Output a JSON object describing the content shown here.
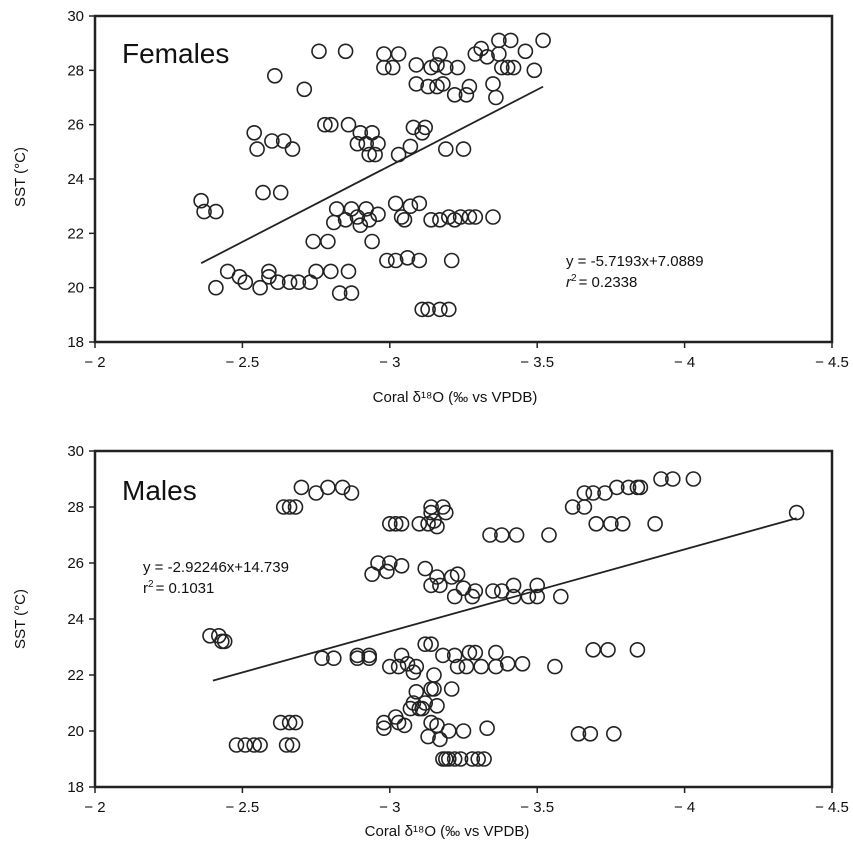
{
  "chart_data": [
    {
      "type": "scatter",
      "title": "Females",
      "xlabel": "Coral δ¹⁸O (‰ vs VPDB)",
      "ylabel": "SST (°C)",
      "xlim": [
        -2,
        -4.5
      ],
      "ylim": [
        18,
        30
      ],
      "x_axis_reversed": true,
      "xticks": [
        -2,
        -2.5,
        -3,
        -3.5,
        -4,
        -4.5
      ],
      "xtick_labels": [
        "− 2",
        "− 2.5",
        "− 3",
        "− 3.5",
        "− 4",
        "− 4.5"
      ],
      "yticks": [
        18,
        20,
        22,
        24,
        26,
        28,
        30
      ],
      "ytick_labels": [
        "18",
        "20",
        "22",
        "24",
        "26",
        "28",
        "30"
      ],
      "grid": false,
      "annotation": {
        "equation": "y = -5.7193x+7.0889",
        "r2_prefix": "r",
        "r2_sup": "2",
        "r2_value": "= 0.2338"
      },
      "trendline": {
        "x": [
          -2.36,
          -3.52
        ],
        "y": [
          20.9,
          27.4
        ]
      },
      "points": [
        [
          -2.36,
          23.2
        ],
        [
          -2.37,
          22.8
        ],
        [
          -2.41,
          22.8
        ],
        [
          -2.41,
          20.0
        ],
        [
          -2.45,
          20.6
        ],
        [
          -2.49,
          20.4
        ],
        [
          -2.51,
          20.2
        ],
        [
          -2.54,
          25.7
        ],
        [
          -2.55,
          25.1
        ],
        [
          -2.56,
          20.0
        ],
        [
          -2.57,
          23.5
        ],
        [
          -2.59,
          20.6
        ],
        [
          -2.59,
          20.4
        ],
        [
          -2.6,
          25.4
        ],
        [
          -2.61,
          27.8
        ],
        [
          -2.62,
          20.2
        ],
        [
          -2.63,
          23.5
        ],
        [
          -2.64,
          25.4
        ],
        [
          -2.66,
          20.2
        ],
        [
          -2.67,
          25.1
        ],
        [
          -2.69,
          20.2
        ],
        [
          -2.71,
          27.3
        ],
        [
          -2.73,
          20.2
        ],
        [
          -2.74,
          21.7
        ],
        [
          -2.75,
          20.6
        ],
        [
          -2.76,
          28.7
        ],
        [
          -2.78,
          26.0
        ],
        [
          -2.79,
          21.7
        ],
        [
          -2.8,
          20.6
        ],
        [
          -2.8,
          26.0
        ],
        [
          -2.81,
          22.4
        ],
        [
          -2.82,
          22.9
        ],
        [
          -2.83,
          19.8
        ],
        [
          -2.85,
          28.7
        ],
        [
          -2.85,
          22.5
        ],
        [
          -2.86,
          20.6
        ],
        [
          -2.86,
          26.0
        ],
        [
          -2.87,
          22.9
        ],
        [
          -2.87,
          19.8
        ],
        [
          -2.89,
          25.3
        ],
        [
          -2.89,
          22.6
        ],
        [
          -2.9,
          25.7
        ],
        [
          -2.9,
          22.3
        ],
        [
          -2.92,
          22.9
        ],
        [
          -2.92,
          25.3
        ],
        [
          -2.93,
          22.5
        ],
        [
          -2.93,
          24.9
        ],
        [
          -2.94,
          21.7
        ],
        [
          -2.94,
          25.7
        ],
        [
          -2.95,
          24.9
        ],
        [
          -2.96,
          22.7
        ],
        [
          -2.96,
          25.3
        ],
        [
          -2.98,
          28.6
        ],
        [
          -2.98,
          28.1
        ],
        [
          -2.99,
          21.0
        ],
        [
          -3.01,
          28.1
        ],
        [
          -3.02,
          21.0
        ],
        [
          -3.02,
          23.1
        ],
        [
          -3.03,
          28.6
        ],
        [
          -3.03,
          24.9
        ],
        [
          -3.04,
          22.6
        ],
        [
          -3.05,
          22.5
        ],
        [
          -3.06,
          21.1
        ],
        [
          -3.07,
          23.0
        ],
        [
          -3.07,
          25.2
        ],
        [
          -3.08,
          25.9
        ],
        [
          -3.09,
          28.2
        ],
        [
          -3.09,
          27.5
        ],
        [
          -3.1,
          23.1
        ],
        [
          -3.1,
          21.0
        ],
        [
          -3.11,
          25.7
        ],
        [
          -3.11,
          19.2
        ],
        [
          -3.12,
          25.9
        ],
        [
          -3.13,
          27.4
        ],
        [
          -3.13,
          19.2
        ],
        [
          -3.14,
          22.5
        ],
        [
          -3.14,
          28.1
        ],
        [
          -3.16,
          28.2
        ],
        [
          -3.16,
          27.4
        ],
        [
          -3.17,
          28.6
        ],
        [
          -3.17,
          22.5
        ],
        [
          -3.17,
          19.2
        ],
        [
          -3.18,
          27.5
        ],
        [
          -3.19,
          28.1
        ],
        [
          -3.19,
          25.1
        ],
        [
          -3.2,
          19.2
        ],
        [
          -3.2,
          22.6
        ],
        [
          -3.21,
          21.0
        ],
        [
          -3.22,
          27.1
        ],
        [
          -3.22,
          22.5
        ],
        [
          -3.23,
          28.1
        ],
        [
          -3.24,
          22.6
        ],
        [
          -3.25,
          25.1
        ],
        [
          -3.26,
          27.1
        ],
        [
          -3.27,
          22.6
        ],
        [
          -3.27,
          27.4
        ],
        [
          -3.29,
          22.6
        ],
        [
          -3.29,
          28.6
        ],
        [
          -3.31,
          28.8
        ],
        [
          -3.33,
          28.5
        ],
        [
          -3.35,
          27.5
        ],
        [
          -3.35,
          22.6
        ],
        [
          -3.36,
          27.0
        ],
        [
          -3.37,
          28.6
        ],
        [
          -3.37,
          29.1
        ],
        [
          -3.38,
          28.1
        ],
        [
          -3.4,
          28.1
        ],
        [
          -3.41,
          29.1
        ],
        [
          -3.42,
          28.1
        ],
        [
          -3.46,
          28.7
        ],
        [
          -3.49,
          28.0
        ],
        [
          -3.52,
          29.1
        ]
      ]
    },
    {
      "type": "scatter",
      "title": "Males",
      "xlabel": "Coral δ¹⁸O (‰ vs VPDB)",
      "ylabel": "SST (°C)",
      "xlim": [
        -2,
        -4.5
      ],
      "ylim": [
        18,
        30
      ],
      "x_axis_reversed": true,
      "xticks": [
        -2,
        -2.5,
        -3,
        -3.5,
        -4,
        -4.5
      ],
      "xtick_labels": [
        "− 2",
        "− 2.5",
        "− 3",
        "− 3.5",
        "− 4",
        "− 4.5"
      ],
      "yticks": [
        18,
        20,
        22,
        24,
        26,
        28,
        30
      ],
      "ytick_labels": [
        "18",
        "20",
        "22",
        "24",
        "26",
        "28",
        "30"
      ],
      "grid": false,
      "annotation": {
        "equation": "y = -2.92246x+14.739",
        "r2_prefix": "r",
        "r2_sup": "2",
        "r2_value": "= 0.1031"
      },
      "trendline": {
        "x": [
          -2.4,
          -4.38
        ],
        "y": [
          21.8,
          27.6
        ]
      },
      "points": [
        [
          -2.39,
          23.4
        ],
        [
          -2.42,
          23.4
        ],
        [
          -2.43,
          23.2
        ],
        [
          -2.44,
          23.2
        ],
        [
          -2.48,
          19.5
        ],
        [
          -2.51,
          19.5
        ],
        [
          -2.54,
          19.5
        ],
        [
          -2.56,
          19.5
        ],
        [
          -2.63,
          20.3
        ],
        [
          -2.64,
          28.0
        ],
        [
          -2.65,
          19.5
        ],
        [
          -2.66,
          20.3
        ],
        [
          -2.66,
          28.0
        ],
        [
          -2.67,
          19.5
        ],
        [
          -2.68,
          20.3
        ],
        [
          -2.68,
          28.0
        ],
        [
          -2.7,
          28.7
        ],
        [
          -2.75,
          28.5
        ],
        [
          -2.77,
          22.6
        ],
        [
          -2.79,
          28.7
        ],
        [
          -2.81,
          22.6
        ],
        [
          -2.84,
          28.7
        ],
        [
          -2.87,
          28.5
        ],
        [
          -2.89,
          22.7
        ],
        [
          -2.89,
          22.6
        ],
        [
          -2.93,
          22.6
        ],
        [
          -2.93,
          22.7
        ],
        [
          -2.94,
          25.6
        ],
        [
          -2.96,
          26.0
        ],
        [
          -2.98,
          20.1
        ],
        [
          -2.98,
          20.3
        ],
        [
          -2.99,
          25.7
        ],
        [
          -3.0,
          27.4
        ],
        [
          -3.0,
          26.0
        ],
        [
          -3.0,
          22.3
        ],
        [
          -3.02,
          27.4
        ],
        [
          -3.02,
          20.5
        ],
        [
          -3.03,
          20.3
        ],
        [
          -3.03,
          22.3
        ],
        [
          -3.04,
          27.4
        ],
        [
          -3.04,
          25.9
        ],
        [
          -3.04,
          22.7
        ],
        [
          -3.05,
          20.2
        ],
        [
          -3.06,
          22.4
        ],
        [
          -3.07,
          20.8
        ],
        [
          -3.08,
          22.1
        ],
        [
          -3.08,
          21.0
        ],
        [
          -3.09,
          22.3
        ],
        [
          -3.09,
          21.4
        ],
        [
          -3.1,
          20.8
        ],
        [
          -3.1,
          27.4
        ],
        [
          -3.11,
          20.8
        ],
        [
          -3.12,
          21.0
        ],
        [
          -3.12,
          23.1
        ],
        [
          -3.12,
          25.8
        ],
        [
          -3.13,
          27.4
        ],
        [
          -3.13,
          19.8
        ],
        [
          -3.14,
          21.5
        ],
        [
          -3.14,
          25.2
        ],
        [
          -3.14,
          28.0
        ],
        [
          -3.14,
          27.8
        ],
        [
          -3.14,
          23.1
        ],
        [
          -3.14,
          20.3
        ],
        [
          -3.15,
          22.0
        ],
        [
          -3.15,
          21.5
        ],
        [
          -3.15,
          27.5
        ],
        [
          -3.16,
          20.2
        ],
        [
          -3.16,
          25.5
        ],
        [
          -3.16,
          27.3
        ],
        [
          -3.16,
          20.9
        ],
        [
          -3.17,
          25.2
        ],
        [
          -3.17,
          19.7
        ],
        [
          -3.18,
          22.7
        ],
        [
          -3.18,
          19.0
        ],
        [
          -3.18,
          28.0
        ],
        [
          -3.19,
          19.0
        ],
        [
          -3.19,
          27.8
        ],
        [
          -3.2,
          20.0
        ],
        [
          -3.2,
          19.0
        ],
        [
          -3.21,
          25.5
        ],
        [
          -3.21,
          21.5
        ],
        [
          -3.22,
          22.7
        ],
        [
          -3.22,
          19.0
        ],
        [
          -3.22,
          24.8
        ],
        [
          -3.23,
          22.3
        ],
        [
          -3.23,
          25.6
        ],
        [
          -3.24,
          19.0
        ],
        [
          -3.25,
          20.0
        ],
        [
          -3.25,
          25.1
        ],
        [
          -3.26,
          22.3
        ],
        [
          -3.27,
          22.8
        ],
        [
          -3.28,
          24.8
        ],
        [
          -3.28,
          19.0
        ],
        [
          -3.29,
          25.0
        ],
        [
          -3.29,
          22.8
        ],
        [
          -3.3,
          19.0
        ],
        [
          -3.31,
          22.3
        ],
        [
          -3.32,
          19.0
        ],
        [
          -3.33,
          20.1
        ],
        [
          -3.34,
          27.0
        ],
        [
          -3.35,
          25.0
        ],
        [
          -3.36,
          22.8
        ],
        [
          -3.36,
          22.3
        ],
        [
          -3.38,
          27.0
        ],
        [
          -3.38,
          25.0
        ],
        [
          -3.4,
          22.4
        ],
        [
          -3.42,
          24.8
        ],
        [
          -3.42,
          25.2
        ],
        [
          -3.43,
          27.0
        ],
        [
          -3.45,
          22.4
        ],
        [
          -3.47,
          24.8
        ],
        [
          -3.5,
          25.2
        ],
        [
          -3.5,
          24.8
        ],
        [
          -3.54,
          27.0
        ],
        [
          -3.56,
          22.3
        ],
        [
          -3.58,
          24.8
        ],
        [
          -3.62,
          28.0
        ],
        [
          -3.64,
          19.9
        ],
        [
          -3.66,
          28.5
        ],
        [
          -3.66,
          28.0
        ],
        [
          -3.68,
          19.9
        ],
        [
          -3.69,
          28.5
        ],
        [
          -3.69,
          22.9
        ],
        [
          -3.7,
          27.4
        ],
        [
          -3.73,
          28.5
        ],
        [
          -3.74,
          22.9
        ],
        [
          -3.75,
          27.4
        ],
        [
          -3.76,
          19.9
        ],
        [
          -3.77,
          28.7
        ],
        [
          -3.79,
          27.4
        ],
        [
          -3.81,
          28.7
        ],
        [
          -3.84,
          28.7
        ],
        [
          -3.84,
          22.9
        ],
        [
          -3.85,
          28.7
        ],
        [
          -3.9,
          27.4
        ],
        [
          -3.92,
          29.0
        ],
        [
          -3.96,
          29.0
        ],
        [
          -4.03,
          29.0
        ],
        [
          -4.38,
          27.8
        ]
      ]
    }
  ]
}
